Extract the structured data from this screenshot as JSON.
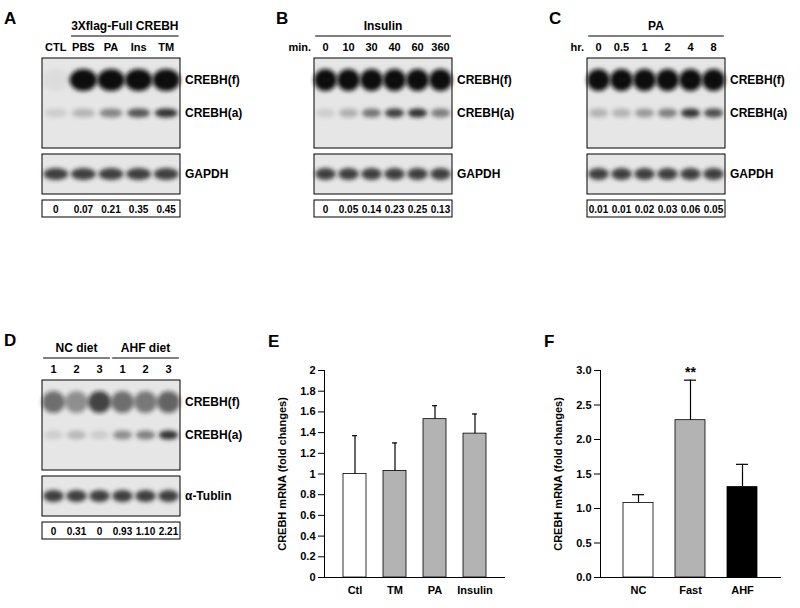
{
  "blots": [
    {
      "panel": "A",
      "groups": [
        {
          "lanes": [
            "CTL"
          ]
        },
        {
          "label": "3Xflag-Full CREBH",
          "lanes": [
            "PBS",
            "PA",
            "Ins",
            "TM"
          ]
        }
      ],
      "bands": [
        "CREBH(f)",
        "CREBH(a)"
      ],
      "loading": "GAPDH",
      "quantification": [
        "0",
        "0.07",
        "0.21",
        "0.35",
        "0.45"
      ]
    },
    {
      "panel": "B",
      "groups": [
        {
          "label": "Insulin",
          "lanes": [
            "0",
            "10",
            "30",
            "40",
            "60",
            "360"
          ]
        }
      ],
      "lane_unit": "min.",
      "bands": [
        "CREBH(f)",
        "CREBH(a)"
      ],
      "loading": "GAPDH",
      "quantification": [
        "0",
        "0.05",
        "0.14",
        "0.23",
        "0.25",
        "0.13"
      ]
    },
    {
      "panel": "C",
      "groups": [
        {
          "label": "PA",
          "lanes": [
            "0",
            "0.5",
            "1",
            "2",
            "4",
            "8"
          ]
        }
      ],
      "lane_unit": "hr.",
      "bands": [
        "CREBH(f)",
        "CREBH(a)"
      ],
      "loading": "GAPDH",
      "quantification": [
        "0.01",
        "0.01",
        "0.02",
        "0.03",
        "0.06",
        "0.05"
      ]
    },
    {
      "panel": "D",
      "groups": [
        {
          "label": "NC diet",
          "lanes": [
            "1",
            "2",
            "3"
          ]
        },
        {
          "label": "AHF diet",
          "lanes": [
            "1",
            "2",
            "3"
          ]
        }
      ],
      "bands": [
        "CREBH(f)",
        "CREBH(a)"
      ],
      "loading": "α-Tublin",
      "quantification": [
        "0",
        "0.31",
        "0",
        "0.93",
        "1.10",
        "2.21"
      ]
    }
  ],
  "chart_data": [
    {
      "type": "bar",
      "title": "E",
      "y_label": "CREBH mRNA (fold changes)",
      "categories": [
        "Ctl",
        "TM",
        "PA",
        "Insulin"
      ],
      "values": [
        1.0,
        1.03,
        1.53,
        1.39
      ],
      "errors": [
        0.37,
        0.27,
        0.13,
        0.19
      ],
      "colors": [
        "#ffffff",
        "#b3b3b3",
        "#b3b3b3",
        "#b3b3b3"
      ],
      "ylim": [
        0,
        2
      ],
      "yticks": [
        0,
        0.2,
        0.4,
        0.6,
        0.8,
        1,
        1.2,
        1.4,
        1.6,
        1.8,
        2
      ]
    },
    {
      "type": "bar",
      "title": "F",
      "y_label": "CREBH mRNA (fold changes)",
      "categories": [
        "NC",
        "Fast",
        "AHF"
      ],
      "values": [
        1.08,
        2.28,
        1.31
      ],
      "errors": [
        0.12,
        0.58,
        0.33
      ],
      "colors": [
        "#ffffff",
        "#b3b3b3",
        "#000000"
      ],
      "ylim": [
        0,
        3
      ],
      "yticks": [
        {
          "value": 0,
          "label": "0.0"
        },
        {
          "value": 0.5,
          "label": "0.5"
        },
        {
          "value": 1,
          "label": "1.0"
        },
        {
          "value": 1.5,
          "label": "1.5"
        },
        {
          "value": 2,
          "label": "2.0"
        },
        {
          "value": 2.5,
          "label": "2.5"
        },
        {
          "value": 3,
          "label": "3.0"
        }
      ],
      "annotations": [
        {
          "category": "Fast",
          "text": "**"
        }
      ]
    }
  ]
}
